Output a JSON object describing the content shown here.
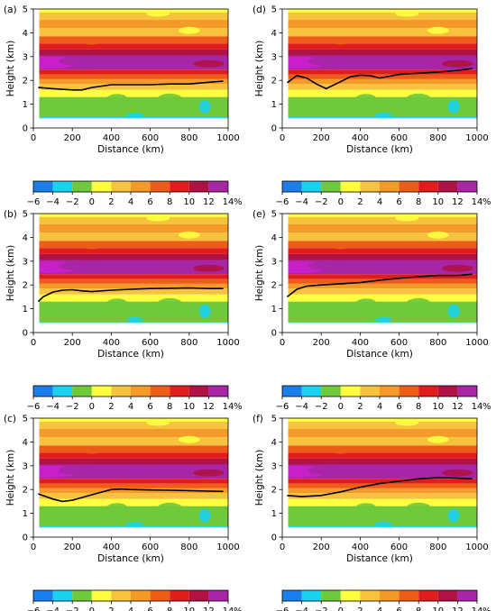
{
  "figure": {
    "panel_labels": [
      "(a)",
      "(b)",
      "(c)",
      "(d)",
      "(e)",
      "(f)"
    ],
    "colorbar": {
      "tick_labels": [
        "−6",
        "−4",
        "−2",
        "0",
        "2",
        "4",
        "6",
        "8",
        "10",
        "12",
        "14"
      ],
      "unit": "%"
    }
  },
  "chart_data": [
    {
      "type": "heatmap",
      "panel": "(a)",
      "xlabel": "Distance (km)",
      "ylabel": "Height (km)",
      "xlim": [
        0,
        1000
      ],
      "ylim": [
        0,
        5
      ],
      "xticks": [
        "0",
        "200",
        "400",
        "600",
        "800",
        "1000"
      ],
      "yticks": [
        "0",
        "1",
        "2",
        "3",
        "4",
        "5"
      ],
      "line": {
        "x": [
          25,
          100,
          200,
          250,
          300,
          400,
          500,
          600,
          700,
          800,
          900,
          975
        ],
        "y": [
          1.7,
          1.65,
          1.6,
          1.6,
          1.7,
          1.82,
          1.82,
          1.82,
          1.85,
          1.85,
          1.92,
          1.97
        ]
      },
      "colorbar": {
        "min": -6,
        "max": 14,
        "step": 2,
        "unit": "%",
        "colors": [
          "#1a7fea",
          "#18d2f0",
          "#6fc93a",
          "#ffff40",
          "#f7c23d",
          "#f39a28",
          "#ed5d18",
          "#e01c1c",
          "#b01246",
          "#a626a6",
          "#cc1fcc"
        ]
      }
    },
    {
      "type": "heatmap",
      "panel": "(b)",
      "xlabel": "Distance (km)",
      "ylabel": "Height (km)",
      "xlim": [
        0,
        1000
      ],
      "ylim": [
        0,
        5
      ],
      "xticks": [
        "0",
        "200",
        "400",
        "600",
        "800",
        "1000"
      ],
      "yticks": [
        "0",
        "1",
        "2",
        "3",
        "4",
        "5"
      ],
      "line": {
        "x": [
          25,
          50,
          100,
          150,
          200,
          250,
          300,
          400,
          500,
          600,
          700,
          800,
          900,
          975
        ],
        "y": [
          1.3,
          1.5,
          1.7,
          1.78,
          1.8,
          1.75,
          1.72,
          1.78,
          1.82,
          1.85,
          1.86,
          1.87,
          1.85,
          1.85
        ]
      },
      "colorbar": {
        "min": -6,
        "max": 14,
        "step": 2,
        "unit": "%",
        "colors": [
          "#1a7fea",
          "#18d2f0",
          "#6fc93a",
          "#ffff40",
          "#f7c23d",
          "#f39a28",
          "#ed5d18",
          "#e01c1c",
          "#b01246",
          "#a626a6",
          "#cc1fcc"
        ]
      }
    },
    {
      "type": "heatmap",
      "panel": "(c)",
      "xlabel": "Distance (km)",
      "ylabel": "Height (km)",
      "xlim": [
        0,
        1000
      ],
      "ylim": [
        0,
        5
      ],
      "xticks": [
        "0",
        "200",
        "400",
        "600",
        "800",
        "1000"
      ],
      "yticks": [
        "0",
        "1",
        "2",
        "3",
        "4",
        "5"
      ],
      "line": {
        "x": [
          25,
          100,
          150,
          200,
          300,
          400,
          450,
          500,
          600,
          700,
          800,
          900,
          975
        ],
        "y": [
          1.82,
          1.6,
          1.5,
          1.55,
          1.78,
          2.0,
          2.02,
          2.0,
          1.98,
          1.97,
          1.95,
          1.93,
          1.92
        ]
      },
      "colorbar": {
        "min": -6,
        "max": 14,
        "step": 2,
        "unit": "%",
        "colors": [
          "#1a7fea",
          "#18d2f0",
          "#6fc93a",
          "#ffff40",
          "#f7c23d",
          "#f39a28",
          "#ed5d18",
          "#e01c1c",
          "#b01246",
          "#a626a6",
          "#cc1fcc"
        ]
      }
    },
    {
      "type": "heatmap",
      "panel": "(d)",
      "xlabel": "Distance (km)",
      "ylabel": "Height (km)",
      "xlim": [
        0,
        1000
      ],
      "ylim": [
        0,
        5
      ],
      "xticks": [
        "0",
        "200",
        "400",
        "600",
        "800",
        "1000"
      ],
      "yticks": [
        "0",
        "1",
        "2",
        "3",
        "4",
        "5"
      ],
      "line": {
        "x": [
          25,
          75,
          125,
          175,
          225,
          275,
          350,
          400,
          450,
          500,
          600,
          700,
          800,
          900,
          975
        ],
        "y": [
          1.9,
          2.2,
          2.1,
          1.85,
          1.65,
          1.85,
          2.15,
          2.22,
          2.2,
          2.1,
          2.25,
          2.3,
          2.35,
          2.42,
          2.5
        ]
      },
      "colorbar": {
        "min": -6,
        "max": 14,
        "step": 2,
        "unit": "%",
        "colors": [
          "#1a7fea",
          "#18d2f0",
          "#6fc93a",
          "#ffff40",
          "#f7c23d",
          "#f39a28",
          "#ed5d18",
          "#e01c1c",
          "#b01246",
          "#a626a6",
          "#cc1fcc"
        ]
      }
    },
    {
      "type": "heatmap",
      "panel": "(e)",
      "xlabel": "Distance (km)",
      "ylabel": "Height (km)",
      "xlim": [
        0,
        1000
      ],
      "ylim": [
        0,
        5
      ],
      "xticks": [
        "0",
        "200",
        "400",
        "600",
        "800",
        "1000"
      ],
      "yticks": [
        "0",
        "1",
        "2",
        "3",
        "4",
        "5"
      ],
      "line": {
        "x": [
          25,
          75,
          125,
          200,
          300,
          400,
          500,
          600,
          700,
          800,
          900,
          975
        ],
        "y": [
          1.5,
          1.82,
          1.95,
          2.0,
          2.05,
          2.1,
          2.2,
          2.28,
          2.35,
          2.4,
          2.4,
          2.45
        ]
      },
      "colorbar": {
        "min": -6,
        "max": 14,
        "step": 2,
        "unit": "%",
        "colors": [
          "#1a7fea",
          "#18d2f0",
          "#6fc93a",
          "#ffff40",
          "#f7c23d",
          "#f39a28",
          "#ed5d18",
          "#e01c1c",
          "#b01246",
          "#a626a6",
          "#cc1fcc"
        ]
      }
    },
    {
      "type": "heatmap",
      "panel": "(f)",
      "xlabel": "Distance (km)",
      "ylabel": "Height (km)",
      "xlim": [
        0,
        1000
      ],
      "ylim": [
        0,
        5
      ],
      "xticks": [
        "0",
        "200",
        "400",
        "600",
        "800",
        "1000"
      ],
      "yticks": [
        "0",
        "1",
        "2",
        "3",
        "4",
        "5"
      ],
      "line": {
        "x": [
          25,
          100,
          200,
          300,
          400,
          500,
          600,
          700,
          800,
          900,
          975
        ],
        "y": [
          1.75,
          1.7,
          1.75,
          1.9,
          2.1,
          2.25,
          2.35,
          2.45,
          2.5,
          2.48,
          2.45
        ]
      },
      "colorbar": {
        "min": -6,
        "max": 14,
        "step": 2,
        "unit": "%",
        "colors": [
          "#1a7fea",
          "#18d2f0",
          "#6fc93a",
          "#ffff40",
          "#f7c23d",
          "#f39a28",
          "#ed5d18",
          "#e01c1c",
          "#b01246",
          "#a626a6",
          "#cc1fcc"
        ]
      }
    }
  ]
}
